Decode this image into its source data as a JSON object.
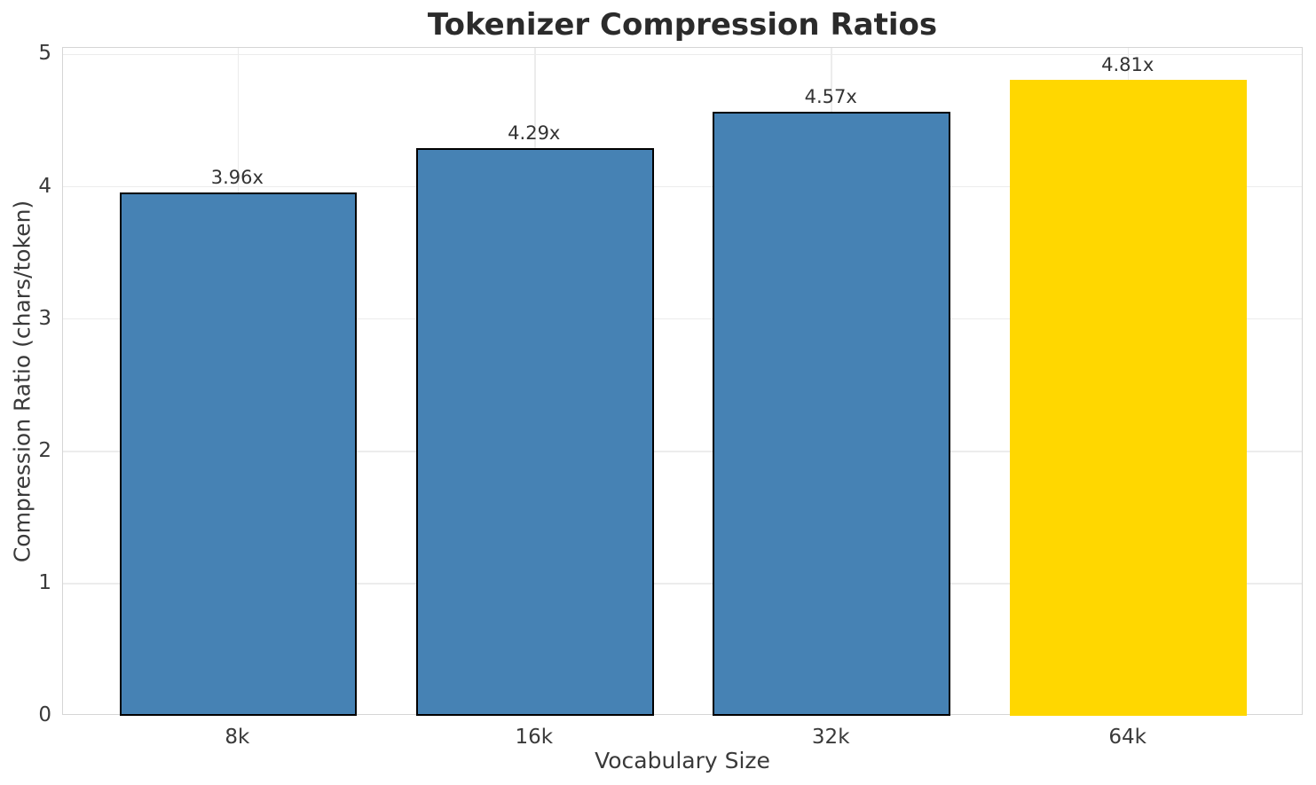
{
  "chart_data": {
    "type": "bar",
    "title": "Tokenizer Compression Ratios",
    "xlabel": "Vocabulary Size",
    "ylabel": "Compression Ratio (chars/token)",
    "categories": [
      "8k",
      "16k",
      "32k",
      "64k"
    ],
    "values": [
      3.96,
      4.29,
      4.57,
      4.81
    ],
    "bar_labels": [
      "3.96x",
      "4.29x",
      "4.57x",
      "4.81x"
    ],
    "highlight_index": 3,
    "ylim": [
      0,
      5.05
    ],
    "xlim": [
      -0.59,
      3.59
    ],
    "yticks": [
      0,
      1,
      2,
      3,
      4,
      5
    ],
    "bar_width_units": 0.8,
    "grid": "both",
    "legend": "none",
    "colors": {
      "bar_fill": "#4682B4",
      "highlight_fill": "#FFD700",
      "bar_edge": "#000000",
      "grid_line": "#ECECEC",
      "spine": "#D5D5D5",
      "title_text": "#2B2B2B",
      "tick_text": "#3A3A3A",
      "bar_label_text": "#333333",
      "background": "#FFFFFF"
    }
  }
}
